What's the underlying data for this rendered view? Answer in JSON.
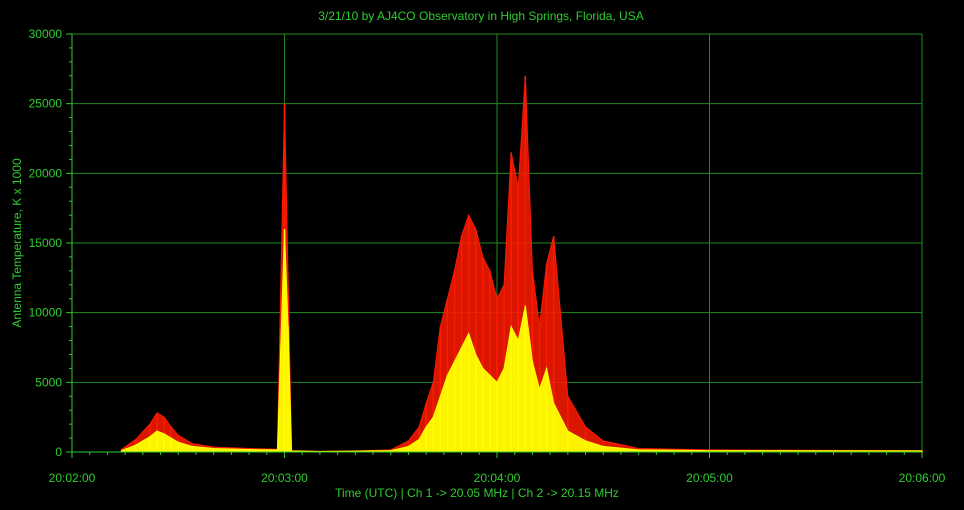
{
  "chart_data": {
    "type": "area",
    "title": "3/21/10  by  AJ4CO Observatory  in  High Springs, Florida, USA",
    "xlabel": "Time (UTC)  |  Ch 1 -> 20.05 MHz  |  Ch 2 -> 20.15 MHz",
    "ylabel": "Antenna Temperature, K x 1000",
    "x_range": [
      "20:02:00",
      "20:06:00"
    ],
    "ylim": [
      0,
      30000
    ],
    "x_ticks": [
      "20:02:00",
      "20:03:00",
      "20:04:00",
      "20:05:00",
      "20:06:00"
    ],
    "y_ticks": [
      0,
      5000,
      10000,
      15000,
      20000,
      25000,
      30000
    ],
    "grid": true,
    "colors": {
      "ch1": "#ff1a00",
      "ch2": "#ffff00",
      "axis": "#2ecc2e",
      "grid": "#1f8a1f",
      "background": "#000000"
    },
    "series": [
      {
        "channel": "Ch 1",
        "color": "#ff1a00",
        "times": [
          "20:02:14",
          "20:02:18",
          "20:02:22",
          "20:02:24",
          "20:02:26",
          "20:02:28",
          "20:02:30",
          "20:02:34",
          "20:02:40",
          "20:02:50",
          "20:02:58",
          "20:03:00",
          "20:03:02",
          "20:03:10",
          "20:03:20",
          "20:03:30",
          "20:03:35",
          "20:03:38",
          "20:03:40",
          "20:03:42",
          "20:03:44",
          "20:03:46",
          "20:03:48",
          "20:03:50",
          "20:03:52",
          "20:03:54",
          "20:03:56",
          "20:03:58",
          "20:04:00",
          "20:04:02",
          "20:04:04",
          "20:04:06",
          "20:04:08",
          "20:04:10",
          "20:04:12",
          "20:04:14",
          "20:04:16",
          "20:04:20",
          "20:04:25",
          "20:04:30",
          "20:04:40",
          "20:05:00",
          "20:06:00"
        ],
        "values": [
          200,
          900,
          2000,
          2800,
          2500,
          1800,
          1200,
          600,
          350,
          250,
          200,
          25000,
          100,
          50,
          80,
          150,
          800,
          1800,
          3500,
          5000,
          9000,
          11000,
          13000,
          15500,
          17000,
          16000,
          14000,
          13000,
          11000,
          12000,
          21500,
          19000,
          27000,
          13000,
          9000,
          13500,
          15500,
          4000,
          1800,
          800,
          250,
          150,
          100
        ]
      },
      {
        "channel": "Ch 2",
        "color": "#ffff00",
        "times": [
          "20:02:14",
          "20:02:18",
          "20:02:22",
          "20:02:24",
          "20:02:26",
          "20:02:28",
          "20:02:30",
          "20:02:34",
          "20:02:40",
          "20:02:50",
          "20:02:58",
          "20:03:00",
          "20:03:01",
          "20:03:02",
          "20:03:10",
          "20:03:20",
          "20:03:30",
          "20:03:35",
          "20:03:38",
          "20:03:40",
          "20:03:42",
          "20:03:44",
          "20:03:46",
          "20:03:48",
          "20:03:50",
          "20:03:52",
          "20:03:54",
          "20:03:56",
          "20:03:58",
          "20:04:00",
          "20:04:02",
          "20:04:04",
          "20:04:06",
          "20:04:08",
          "20:04:10",
          "20:04:12",
          "20:04:14",
          "20:04:16",
          "20:04:20",
          "20:04:25",
          "20:04:30",
          "20:04:40",
          "20:05:00",
          "20:06:00"
        ],
        "values": [
          100,
          500,
          1100,
          1500,
          1300,
          1000,
          700,
          400,
          250,
          180,
          150,
          16000,
          9000,
          80,
          40,
          60,
          100,
          400,
          900,
          1800,
          2500,
          4000,
          5500,
          6500,
          7500,
          8500,
          7000,
          6000,
          5500,
          5000,
          6000,
          9000,
          8000,
          10500,
          6500,
          4500,
          6000,
          3500,
          1500,
          800,
          400,
          150,
          100,
          80
        ]
      }
    ]
  }
}
